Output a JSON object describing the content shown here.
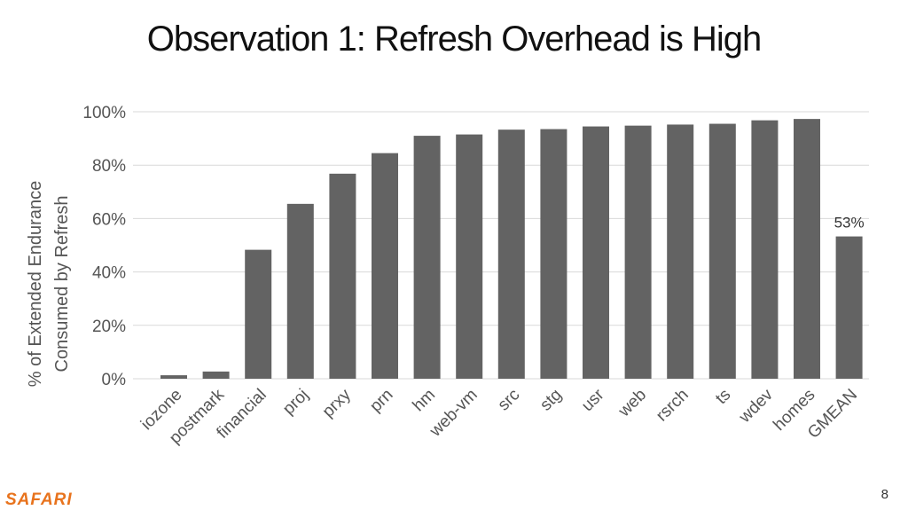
{
  "slide": {
    "title": "Observation 1: Refresh Overhead is High",
    "logo": "SAFARI",
    "page_number": "8"
  },
  "colors": {
    "bar": "#636363",
    "grid": "#d9d9d9",
    "text": "#555555"
  },
  "chart_data": {
    "type": "bar",
    "title": "",
    "xlabel": "",
    "ylabel": "% of Extended Endurance Consumed by Refresh",
    "ylabel_lines": [
      "% of Extended Endurance",
      "Consumed by Refresh"
    ],
    "ylim": [
      0,
      100
    ],
    "yticks": [
      0,
      20,
      40,
      60,
      80,
      100
    ],
    "ytick_labels": [
      "0%",
      "20%",
      "40%",
      "60%",
      "80%",
      "100%"
    ],
    "grid": true,
    "categories": [
      "iozone",
      "postmark",
      "financial",
      "proj",
      "prxy",
      "prn",
      "hm",
      "web-vm",
      "src",
      "stg",
      "usr",
      "web",
      "rsrch",
      "ts",
      "wdev",
      "homes",
      "GMEAN"
    ],
    "values": [
      1.3,
      2.7,
      48.3,
      65.5,
      76.8,
      84.5,
      91.0,
      91.5,
      93.3,
      93.5,
      94.5,
      94.8,
      95.2,
      95.5,
      96.8,
      97.3,
      53.3
    ],
    "annotations": [
      {
        "category": "GMEAN",
        "text": "53%"
      }
    ]
  }
}
